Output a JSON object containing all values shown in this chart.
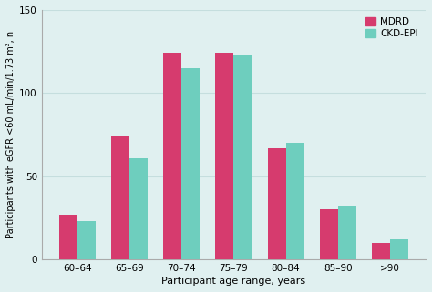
{
  "categories": [
    "60–64",
    "65–69",
    "70–74",
    "75–79",
    "80–84",
    "85–90",
    ">90"
  ],
  "mdrd_values": [
    27,
    74,
    124,
    124,
    67,
    30,
    10
  ],
  "ckdepi_values": [
    23,
    61,
    115,
    123,
    70,
    32,
    12
  ],
  "mdrd_color": "#d63b6e",
  "ckdepi_color": "#6ecebe",
  "background_color": "#e0f0f0",
  "xlabel": "Participant age range, years",
  "ylabel": "Participants with eGFR <60 mL/min/1.73 m², n",
  "ylim": [
    0,
    150
  ],
  "yticks": [
    0,
    50,
    100,
    150
  ],
  "legend_labels": [
    "MDRD",
    "CKD-EPI"
  ],
  "bar_width": 0.35,
  "grid_color": "#c5dede"
}
